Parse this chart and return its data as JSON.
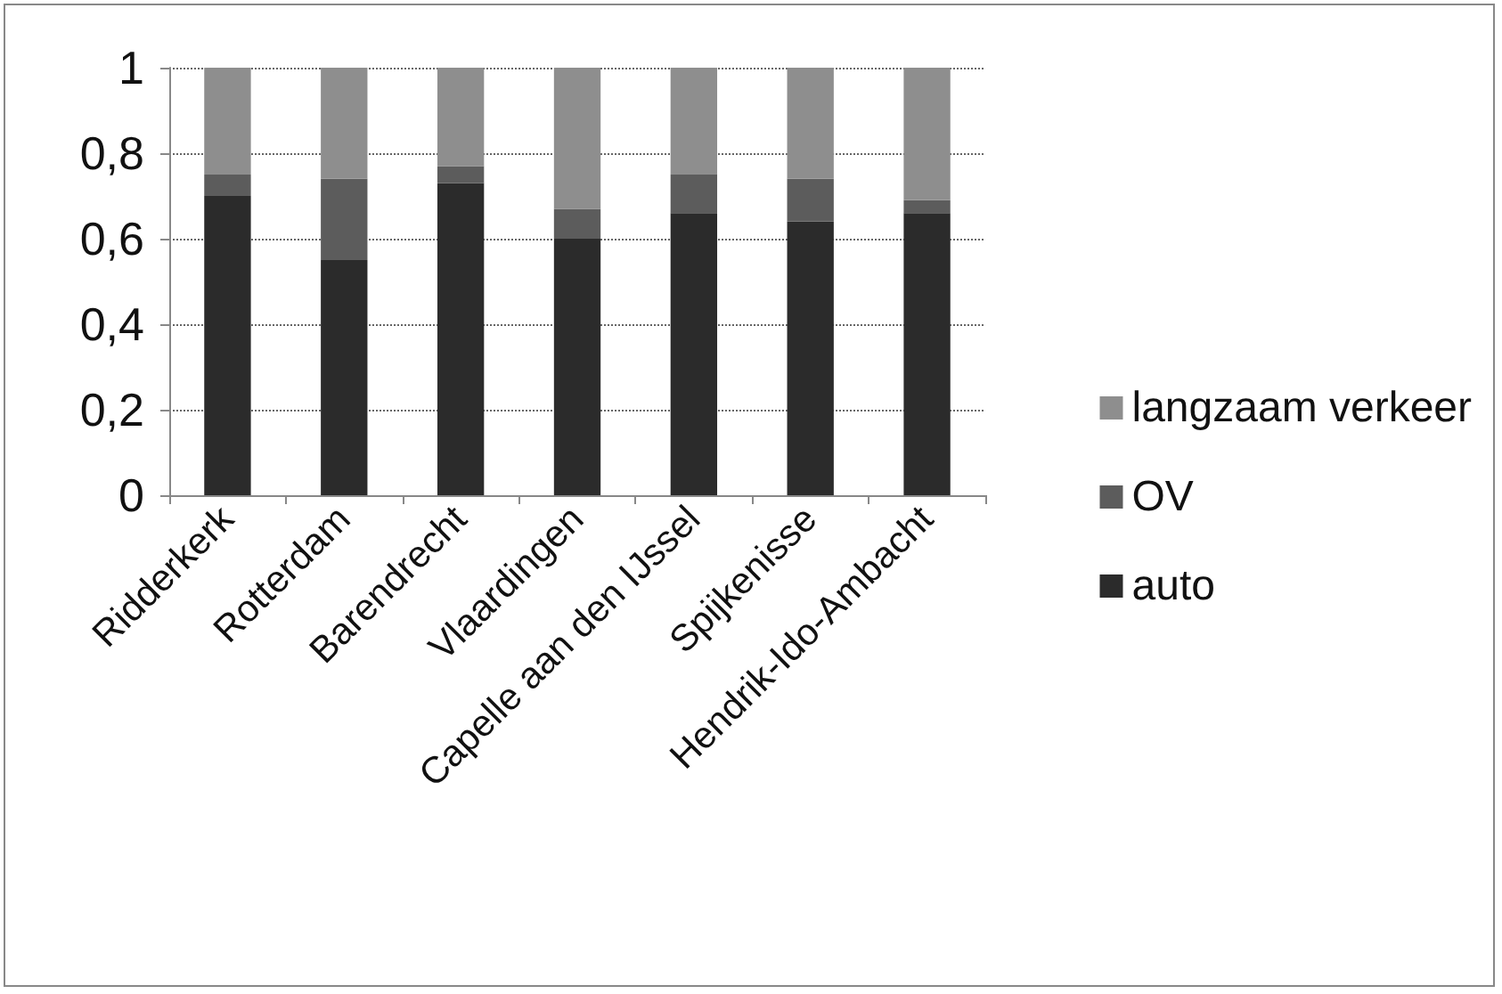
{
  "chart_data": {
    "type": "bar",
    "stacked": true,
    "categories": [
      "Ridderkerk",
      "Rotterdam",
      "Barendrecht",
      "Vlaardingen",
      "Capelle aan den IJssel",
      "Spijkenisse",
      "Hendrik-Ido-Ambacht"
    ],
    "series": [
      {
        "name": "auto",
        "color": "#2b2b2b",
        "values": [
          0.7,
          0.55,
          0.73,
          0.6,
          0.66,
          0.64,
          0.66
        ]
      },
      {
        "name": "OV",
        "color": "#5c5c5c",
        "values": [
          0.05,
          0.19,
          0.04,
          0.07,
          0.09,
          0.1,
          0.03
        ]
      },
      {
        "name": "langzaam verkeer",
        "color": "#8e8e8e",
        "values": [
          0.25,
          0.26,
          0.23,
          0.33,
          0.25,
          0.26,
          0.31
        ]
      }
    ],
    "ylim": [
      0,
      1
    ],
    "yticks": [
      0,
      {
        "value": 0.2,
        "label": "0,2"
      },
      {
        "value": 0.4,
        "label": "0,4"
      },
      {
        "value": 0.6,
        "label": "0,6"
      },
      {
        "value": 0.8,
        "label": "0,8"
      },
      1
    ],
    "grid": "y",
    "legend": "right"
  }
}
